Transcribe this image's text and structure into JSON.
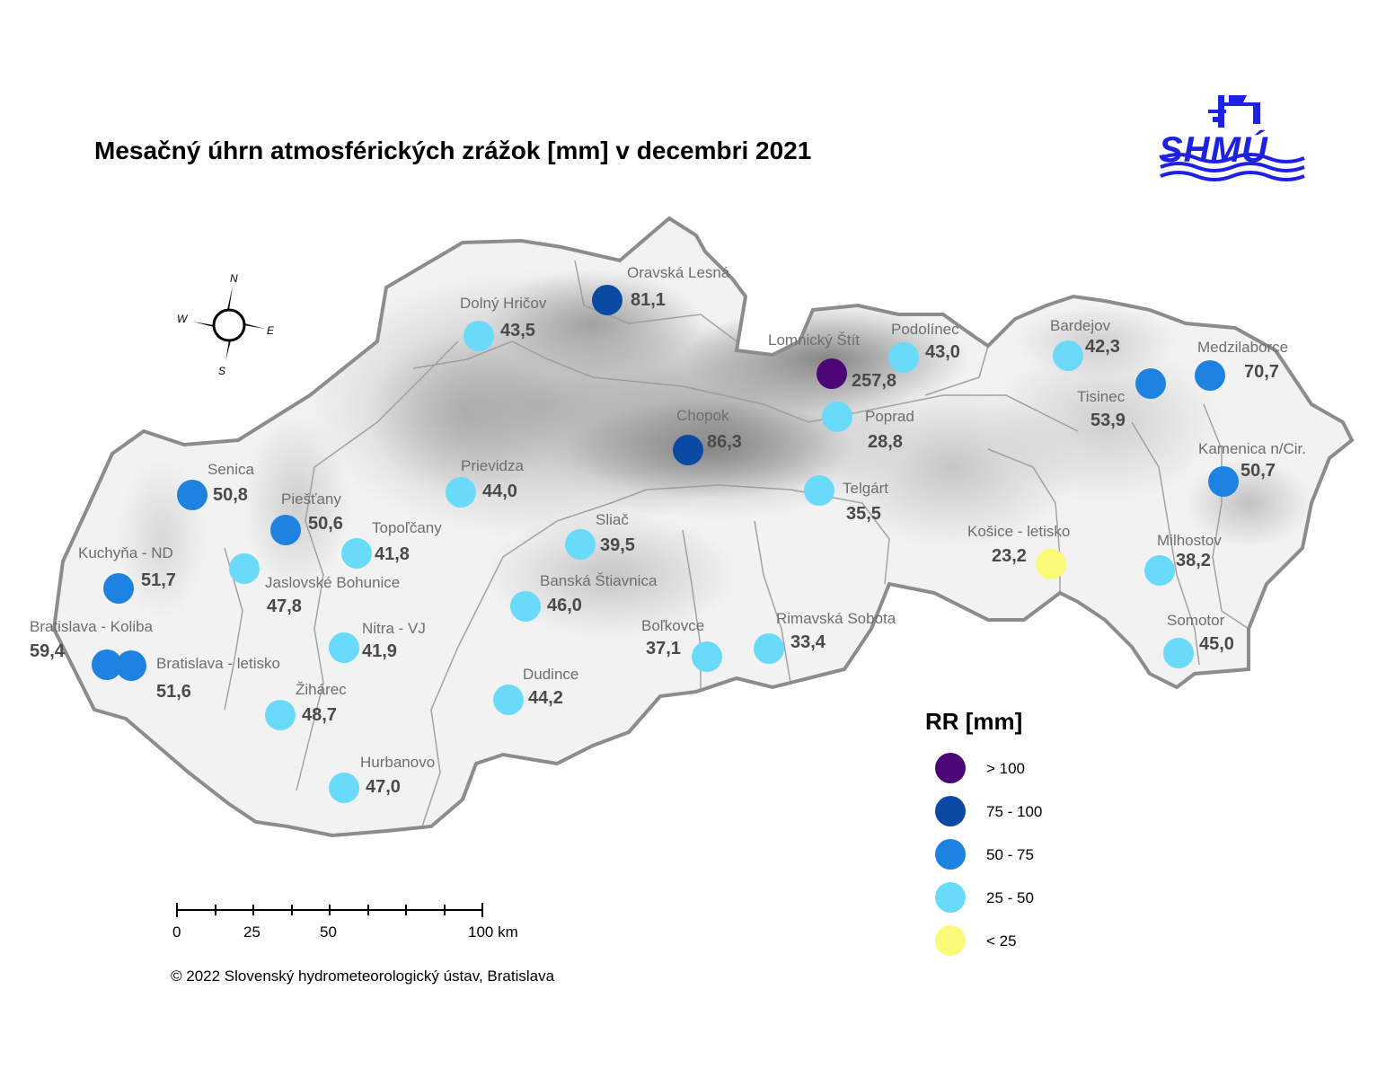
{
  "title": "Mesačný úhrn atmosférických zrážok [mm] v decembri 2021",
  "logo": {
    "text": "SHMÚ",
    "color": "#1e22e0"
  },
  "compass": {
    "n": "N",
    "e": "E",
    "s": "S",
    "w": "W"
  },
  "legend": {
    "title": "RR [mm]",
    "classes": [
      {
        "label": "> 100",
        "color": "#4b0577"
      },
      {
        "label": "75 - 100",
        "color": "#0a4aa3"
      },
      {
        "label": "50 - 75",
        "color": "#1e82e0"
      },
      {
        "label": "25 - 50",
        "color": "#6adafa"
      },
      {
        "label": "< 25",
        "color": "#fafa78"
      }
    ]
  },
  "scale_bar": {
    "labels": [
      "0",
      "25",
      "50",
      "100 km"
    ]
  },
  "copyright": "© 2022 Slovenský hydrometeorologický ústav, Bratislava",
  "stations": [
    {
      "name": "Oravská Lesná",
      "value": "81,1",
      "class": 1
    },
    {
      "name": "Dolný Hričov",
      "value": "43,5",
      "class": 3
    },
    {
      "name": "Lomnický Štít",
      "value": "257,8",
      "class": 0
    },
    {
      "name": "Podolínec",
      "value": "43,0",
      "class": 3
    },
    {
      "name": "Bardejov",
      "value": "42,3",
      "class": 3
    },
    {
      "name": "Medzilaborce",
      "value": "70,7",
      "class": 2
    },
    {
      "name": "Tisinec",
      "value": "53,9",
      "class": 2
    },
    {
      "name": "Poprad",
      "value": "28,8",
      "class": 3
    },
    {
      "name": "Chopok",
      "value": "86,3",
      "class": 1
    },
    {
      "name": "Kamenica n/Cir.",
      "value": "50,7",
      "class": 2
    },
    {
      "name": "Senica",
      "value": "50,8",
      "class": 2
    },
    {
      "name": "Prievidza",
      "value": "44,0",
      "class": 3
    },
    {
      "name": "Telgárt",
      "value": "35,5",
      "class": 3
    },
    {
      "name": "Piešťany",
      "value": "50,6",
      "class": 2
    },
    {
      "name": "Topoľčany",
      "value": "41,8",
      "class": 3
    },
    {
      "name": "Sliač",
      "value": "39,5",
      "class": 3
    },
    {
      "name": "Košice - letisko",
      "value": "23,2",
      "class": 4
    },
    {
      "name": "Milhostov",
      "value": "38,2",
      "class": 3
    },
    {
      "name": "Kuchyňa - ND",
      "value": "51,7",
      "class": 2
    },
    {
      "name": "Jaslovské Bohunice",
      "value": "47,8",
      "class": 3
    },
    {
      "name": "Banská Štiavnica",
      "value": "46,0",
      "class": 3
    },
    {
      "name": "Bratislava - Koliba",
      "value": "59,4",
      "class": 2
    },
    {
      "name": "Nitra - VJ",
      "value": "41,9",
      "class": 3
    },
    {
      "name": "Boľkovce",
      "value": "37,1",
      "class": 3
    },
    {
      "name": "Rimavská Sobota",
      "value": "33,4",
      "class": 3
    },
    {
      "name": "Somotor",
      "value": "45,0",
      "class": 3
    },
    {
      "name": "Bratislava - letisko",
      "value": "51,6",
      "class": 2
    },
    {
      "name": "Žihárec",
      "value": "48,7",
      "class": 3
    },
    {
      "name": "Dudince",
      "value": "44,2",
      "class": 3
    },
    {
      "name": "Hurbanovo",
      "value": "47,0",
      "class": 3
    }
  ]
}
